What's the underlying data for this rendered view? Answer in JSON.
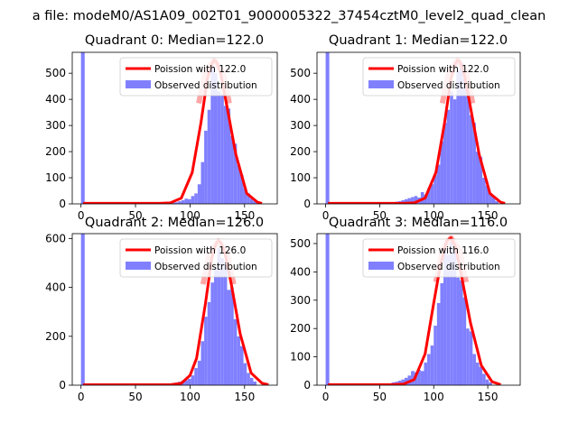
{
  "figure": {
    "suptitle": "a file: modeM0/AS1A09_002T01_9000005322_37454cztM0_level2_quad_clean"
  },
  "colors": {
    "poisson": "#ff0000",
    "observed": "#8080ff",
    "legend_border": "#cccccc"
  },
  "chart_data": [
    {
      "type": "bar",
      "title": "Quadrant 0: Median=122.0",
      "legend": [
        "Poission with 122.0",
        "Observed distribution"
      ],
      "legend_placement": "top-right",
      "xlim": [
        -8,
        180
      ],
      "ylim": [
        0,
        580
      ],
      "xticks": [
        0,
        50,
        100,
        150
      ],
      "yticks": [
        0,
        100,
        200,
        300,
        400,
        500
      ],
      "bins": [
        [
          0,
          3.4,
          580
        ],
        [
          74,
          77,
          6
        ],
        [
          77,
          80,
          5
        ],
        [
          80,
          83,
          8
        ],
        [
          83,
          86,
          4
        ],
        [
          86,
          89,
          6
        ],
        [
          89,
          92,
          10
        ],
        [
          92,
          95,
          14
        ],
        [
          95,
          98,
          20
        ],
        [
          98,
          101,
          18
        ],
        [
          101,
          104,
          30
        ],
        [
          104,
          107,
          40
        ],
        [
          107,
          110,
          75
        ],
        [
          110,
          113,
          160
        ],
        [
          113,
          116,
          280
        ],
        [
          116,
          119,
          360
        ],
        [
          119,
          122,
          530
        ],
        [
          122,
          125,
          500
        ],
        [
          125,
          128,
          430
        ],
        [
          128,
          131,
          420
        ],
        [
          131,
          134,
          375
        ],
        [
          134,
          137,
          365
        ],
        [
          137,
          140,
          260
        ],
        [
          140,
          143,
          230
        ],
        [
          143,
          146,
          150
        ],
        [
          146,
          149,
          110
        ],
        [
          149,
          152,
          60
        ],
        [
          152,
          155,
          40
        ],
        [
          155,
          158,
          20
        ],
        [
          158,
          161,
          10
        ]
      ],
      "poisson": {
        "mean": 122,
        "peak": 550,
        "x": [
          2,
          12,
          22,
          32,
          42,
          52,
          62,
          72,
          82,
          92,
          102,
          110,
          116,
          120,
          122,
          124,
          128,
          134,
          142,
          152,
          162,
          166
        ],
        "y": [
          2,
          2,
          2,
          2,
          2,
          2,
          2,
          2,
          4,
          22,
          120,
          310,
          480,
          535,
          550,
          545,
          500,
          370,
          190,
          40,
          6,
          2
        ]
      }
    },
    {
      "type": "bar",
      "title": "Quadrant 1: Median=122.0",
      "legend": [
        "Poission with 122.0",
        "Observed distribution"
      ],
      "legend_placement": "top-right",
      "xlim": [
        -8,
        180
      ],
      "ylim": [
        0,
        580
      ],
      "xticks": [
        0,
        50,
        100,
        150
      ],
      "yticks": [
        0,
        100,
        200,
        300,
        400,
        500
      ],
      "bins": [
        [
          0,
          3.4,
          580
        ],
        [
          64,
          67,
          8
        ],
        [
          67,
          70,
          10
        ],
        [
          70,
          73,
          14
        ],
        [
          73,
          76,
          18
        ],
        [
          76,
          79,
          22
        ],
        [
          79,
          82,
          26
        ],
        [
          82,
          85,
          30
        ],
        [
          85,
          88,
          24
        ],
        [
          88,
          91,
          45
        ],
        [
          91,
          94,
          35
        ],
        [
          94,
          97,
          60
        ],
        [
          97,
          100,
          75
        ],
        [
          100,
          103,
          110
        ],
        [
          103,
          106,
          150
        ],
        [
          106,
          109,
          240
        ],
        [
          109,
          112,
          310
        ],
        [
          112,
          115,
          360
        ],
        [
          115,
          118,
          430
        ],
        [
          118,
          121,
          400
        ],
        [
          121,
          124,
          510
        ],
        [
          124,
          127,
          540
        ],
        [
          127,
          130,
          475
        ],
        [
          130,
          133,
          430
        ],
        [
          133,
          136,
          340
        ],
        [
          136,
          139,
          310
        ],
        [
          139,
          142,
          200
        ],
        [
          142,
          145,
          180
        ],
        [
          145,
          148,
          100
        ],
        [
          148,
          151,
          70
        ],
        [
          151,
          154,
          40
        ],
        [
          154,
          157,
          25
        ],
        [
          157,
          160,
          10
        ]
      ],
      "poisson": {
        "mean": 122,
        "peak": 550,
        "x": [
          2,
          12,
          22,
          32,
          42,
          52,
          62,
          72,
          82,
          92,
          102,
          110,
          116,
          120,
          122,
          124,
          128,
          134,
          142,
          152,
          162,
          166
        ],
        "y": [
          2,
          2,
          2,
          2,
          2,
          2,
          2,
          2,
          4,
          22,
          120,
          310,
          480,
          535,
          550,
          545,
          500,
          370,
          190,
          40,
          6,
          2
        ]
      }
    },
    {
      "type": "bar",
      "title": "Quadrant 2: Median=126.0",
      "legend": [
        "Poission with 126.0",
        "Observed distribution"
      ],
      "legend_placement": "top-right",
      "xlim": [
        -8,
        180
      ],
      "ylim": [
        0,
        620
      ],
      "xticks": [
        0,
        50,
        100,
        150
      ],
      "yticks": [
        0,
        200,
        400,
        600
      ],
      "bins": [
        [
          0,
          3.4,
          620
        ],
        [
          80,
          83,
          5
        ],
        [
          83,
          86,
          8
        ],
        [
          86,
          89,
          10
        ],
        [
          89,
          92,
          14
        ],
        [
          92,
          95,
          18
        ],
        [
          95,
          98,
          20
        ],
        [
          98,
          101,
          26
        ],
        [
          101,
          104,
          40
        ],
        [
          104,
          107,
          70
        ],
        [
          107,
          110,
          100
        ],
        [
          110,
          113,
          180
        ],
        [
          113,
          116,
          280
        ],
        [
          116,
          119,
          340
        ],
        [
          119,
          122,
          420
        ],
        [
          122,
          125,
          480
        ],
        [
          125,
          128,
          560
        ],
        [
          128,
          131,
          520
        ],
        [
          131,
          134,
          500
        ],
        [
          134,
          137,
          390
        ],
        [
          137,
          140,
          400
        ],
        [
          140,
          143,
          270
        ],
        [
          143,
          146,
          200
        ],
        [
          146,
          149,
          160
        ],
        [
          149,
          152,
          90
        ],
        [
          152,
          155,
          50
        ],
        [
          155,
          158,
          30
        ],
        [
          158,
          161,
          15
        ]
      ],
      "poisson": {
        "mean": 126,
        "peak": 590,
        "x": [
          2,
          12,
          22,
          32,
          42,
          52,
          62,
          72,
          82,
          92,
          100,
          106,
          114,
          120,
          124,
          126,
          128,
          132,
          138,
          146,
          156,
          166,
          172
        ],
        "y": [
          2,
          2,
          2,
          2,
          2,
          2,
          2,
          2,
          2,
          8,
          40,
          110,
          330,
          520,
          580,
          590,
          585,
          540,
          410,
          210,
          50,
          8,
          2
        ]
      }
    },
    {
      "type": "bar",
      "title": "Quadrant 3: Median=116.0",
      "legend": [
        "Poission with 116.0",
        "Observed distribution"
      ],
      "legend_placement": "top-right",
      "xlim": [
        -8,
        180
      ],
      "ylim": [
        0,
        535
      ],
      "xticks": [
        0,
        50,
        100,
        150
      ],
      "yticks": [
        0,
        100,
        200,
        300,
        400,
        500
      ],
      "bins": [
        [
          0,
          3.4,
          535
        ],
        [
          58,
          61,
          6
        ],
        [
          61,
          64,
          10
        ],
        [
          64,
          67,
          12
        ],
        [
          67,
          70,
          16
        ],
        [
          70,
          73,
          20
        ],
        [
          73,
          76,
          26
        ],
        [
          76,
          79,
          34
        ],
        [
          79,
          82,
          50
        ],
        [
          82,
          85,
          46
        ],
        [
          85,
          88,
          54
        ],
        [
          88,
          91,
          50
        ],
        [
          91,
          94,
          80
        ],
        [
          94,
          97,
          110
        ],
        [
          97,
          100,
          140
        ],
        [
          100,
          103,
          210
        ],
        [
          103,
          106,
          290
        ],
        [
          106,
          109,
          360
        ],
        [
          109,
          112,
          480
        ],
        [
          112,
          115,
          460
        ],
        [
          115,
          118,
          505
        ],
        [
          118,
          121,
          490
        ],
        [
          121,
          124,
          380
        ],
        [
          124,
          127,
          370
        ],
        [
          127,
          130,
          310
        ],
        [
          130,
          133,
          200
        ],
        [
          133,
          136,
          190
        ],
        [
          136,
          139,
          110
        ],
        [
          139,
          142,
          80
        ],
        [
          142,
          145,
          65
        ],
        [
          145,
          148,
          40
        ],
        [
          148,
          151,
          20
        ],
        [
          151,
          154,
          10
        ]
      ],
      "poisson": {
        "mean": 116,
        "peak": 520,
        "x": [
          2,
          12,
          22,
          32,
          42,
          52,
          62,
          72,
          82,
          92,
          100,
          106,
          112,
          116,
          120,
          126,
          134,
          144,
          154,
          162
        ],
        "y": [
          2,
          2,
          2,
          2,
          2,
          2,
          2,
          4,
          20,
          110,
          290,
          420,
          510,
          520,
          490,
          380,
          220,
          70,
          12,
          2
        ]
      }
    }
  ]
}
